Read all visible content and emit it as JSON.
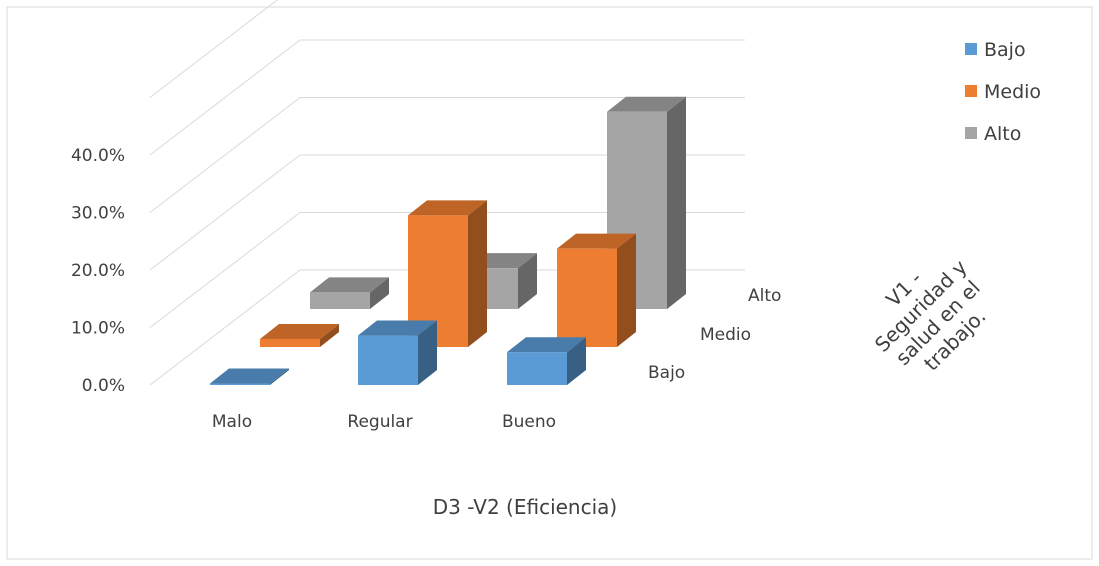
{
  "chart_data": {
    "type": "bar",
    "subtype": "3d-column",
    "title": "",
    "xlabel": "D3 -V2 (Eficiencia)",
    "zlabel_lines": [
      "V1 -",
      "Seguridad y",
      "salud en el",
      "trabajo."
    ],
    "ylabel": "",
    "categories": [
      "Malo",
      "Regular",
      "Bueno"
    ],
    "y_ticks": [
      "0.0%",
      "10.0%",
      "20.0%",
      "30.0%",
      "40.0%"
    ],
    "ylim": [
      0,
      40
    ],
    "grid": true,
    "legend_position": "top-right",
    "series": [
      {
        "name": "Bajo",
        "values": [
          0.0,
          8.6,
          5.7
        ],
        "color": "#5B9BD5"
      },
      {
        "name": "Medio",
        "values": [
          1.4,
          22.9,
          17.1
        ],
        "color": "#ED7D31"
      },
      {
        "name": "Alto",
        "values": [
          2.9,
          7.1,
          34.3
        ],
        "color": "#A5A5A5"
      }
    ]
  }
}
